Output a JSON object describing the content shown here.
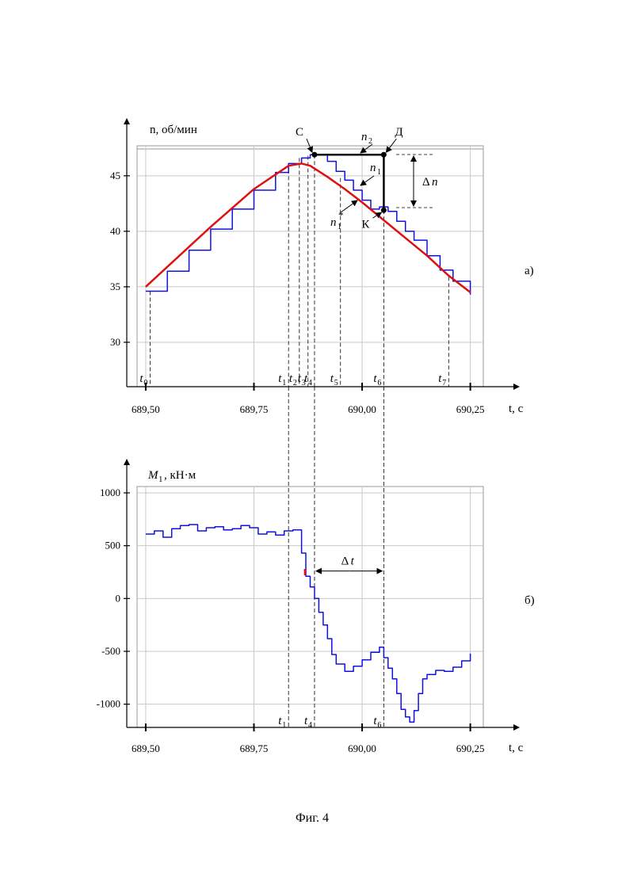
{
  "caption": "Фиг. 4",
  "chart_data": [
    {
      "type": "line",
      "panel_label": "а)",
      "ylabel": "n, об/мин",
      "xlabel": "t, с",
      "xlim": [
        689.48,
        690.28
      ],
      "ylim": [
        26.0,
        47.7
      ],
      "x_ticks": [
        689.5,
        689.75,
        690.0,
        690.25
      ],
      "x_tick_labels": [
        "689,50",
        "689,75",
        "690,00",
        "690,25"
      ],
      "y_ticks": [
        30,
        35,
        40,
        45
      ],
      "y_tick_labels": [
        "30",
        "35",
        "40",
        "45"
      ],
      "grid": true,
      "series": [
        {
          "name": "n1",
          "color": "#1010e0",
          "step": true,
          "x": [
            689.5,
            689.55,
            689.6,
            689.65,
            689.7,
            689.75,
            689.8,
            689.83,
            689.86,
            689.88,
            689.9,
            689.92,
            689.94,
            689.96,
            689.98,
            690.0,
            690.02,
            690.04,
            690.06,
            690.08,
            690.1,
            690.12,
            690.15,
            690.18,
            690.21,
            690.25
          ],
          "y": [
            34.6,
            36.4,
            38.3,
            40.2,
            42.0,
            43.7,
            45.3,
            46.1,
            46.6,
            46.9,
            46.9,
            46.3,
            45.4,
            44.6,
            43.7,
            42.8,
            42.0,
            42.2,
            41.8,
            40.9,
            40.0,
            39.2,
            37.8,
            36.5,
            35.5,
            34.3
          ]
        },
        {
          "name": "n1*",
          "color": "#e01010",
          "x": [
            689.5,
            689.65,
            689.75,
            689.83,
            689.86,
            689.88,
            689.92,
            689.96,
            690.0,
            690.05,
            690.1,
            690.15,
            690.2,
            690.25
          ],
          "y": [
            35.0,
            40.4,
            43.8,
            45.9,
            46.1,
            45.9,
            44.9,
            43.8,
            42.6,
            41.0,
            39.4,
            37.8,
            36.0,
            34.5
          ]
        },
        {
          "name": "n2",
          "color": "#000000",
          "x": [
            689.89,
            690.05,
            690.05
          ],
          "y": [
            46.9,
            46.9,
            41.9
          ]
        }
      ],
      "points": [
        {
          "label": "С",
          "x": 689.89,
          "y": 46.9
        },
        {
          "label": "Д",
          "x": 690.05,
          "y": 46.9
        },
        {
          "label": "К",
          "x": 690.05,
          "y": 41.9
        }
      ],
      "annotations": {
        "n2": "n",
        "n2_sub": "2",
        "n1": "n",
        "n1_sub": "1",
        "n1star": "n",
        "n1star_sub": "1",
        "n1star_sup": "*",
        "dn_symbol": "Δ",
        "dn_var": "n"
      },
      "time_markers": [
        {
          "name": "t",
          "sub": "0",
          "x": 689.51,
          "y_from": 34.6
        },
        {
          "name": "t",
          "sub": "1",
          "x": 689.83,
          "y_from": 46.1
        },
        {
          "name": "t",
          "sub": "2",
          "x": 689.855,
          "y_from": 46.6
        },
        {
          "name": "t",
          "sub": "3",
          "x": 689.875,
          "y_from": 46.8
        },
        {
          "name": "t",
          "sub": "4",
          "x": 689.89,
          "y_from": 46.9
        },
        {
          "name": "t",
          "sub": "5",
          "x": 689.95,
          "y_from": 44.8
        },
        {
          "name": "t",
          "sub": "6",
          "x": 690.05,
          "y_from": 41.9
        },
        {
          "name": "t",
          "sub": "7",
          "x": 690.2,
          "y_from": 35.9
        }
      ]
    },
    {
      "type": "line",
      "panel_label": "б)",
      "ylabel": "M1, кН·м",
      "ylabel_main": "M",
      "ylabel_sub": "1",
      "ylabel_unit": ", кН·м",
      "xlabel": "t, с",
      "xlim": [
        689.48,
        690.28
      ],
      "ylim": [
        -1220,
        1060
      ],
      "x_ticks": [
        689.5,
        689.75,
        690.0,
        690.25
      ],
      "x_tick_labels": [
        "689,50",
        "689,75",
        "690,00",
        "690,25"
      ],
      "y_ticks": [
        1000,
        500,
        0,
        -500,
        -1000
      ],
      "y_tick_labels": [
        "1000",
        "500",
        "0",
        "-500",
        "-1000"
      ],
      "grid": true,
      "series": [
        {
          "name": "M1",
          "color": "#1010e0",
          "step": true,
          "x": [
            689.5,
            689.52,
            689.54,
            689.56,
            689.58,
            689.6,
            689.62,
            689.64,
            689.66,
            689.68,
            689.7,
            689.72,
            689.74,
            689.76,
            689.78,
            689.8,
            689.82,
            689.84,
            689.86,
            689.87,
            689.88,
            689.89,
            689.9,
            689.91,
            689.92,
            689.93,
            689.94,
            689.96,
            689.98,
            690.0,
            690.02,
            690.04,
            690.05,
            690.06,
            690.07,
            690.08,
            690.09,
            690.1,
            690.11,
            690.12,
            690.13,
            690.14,
            690.15,
            690.17,
            690.19,
            690.21,
            690.23,
            690.25
          ],
          "y": [
            610,
            640,
            580,
            660,
            690,
            700,
            640,
            670,
            680,
            650,
            660,
            690,
            670,
            610,
            630,
            600,
            640,
            650,
            430,
            210,
            110,
            0,
            -130,
            -250,
            -380,
            -530,
            -620,
            -690,
            -640,
            -580,
            -510,
            -460,
            -560,
            -660,
            -760,
            -900,
            -1050,
            -1120,
            -1170,
            -1060,
            -900,
            -760,
            -720,
            -680,
            -690,
            -650,
            -590,
            -520
          ]
        },
        {
          "name": "M1*",
          "color": "#e01010",
          "x": [
            689.868,
            689.868
          ],
          "y": [
            280,
            220
          ]
        }
      ],
      "annotations": {
        "dt_symbol": "Δ",
        "dt_var": "t"
      },
      "dt_range": [
        689.89,
        690.05
      ],
      "dt_y": 260,
      "time_markers": [
        {
          "name": "t",
          "sub": "1",
          "x": 689.83,
          "y_to": 1000
        },
        {
          "name": "t",
          "sub": "4",
          "x": 689.89,
          "y_to": 1000
        },
        {
          "name": "t",
          "sub": "6",
          "x": 690.05,
          "y_to": 1000
        }
      ]
    }
  ]
}
